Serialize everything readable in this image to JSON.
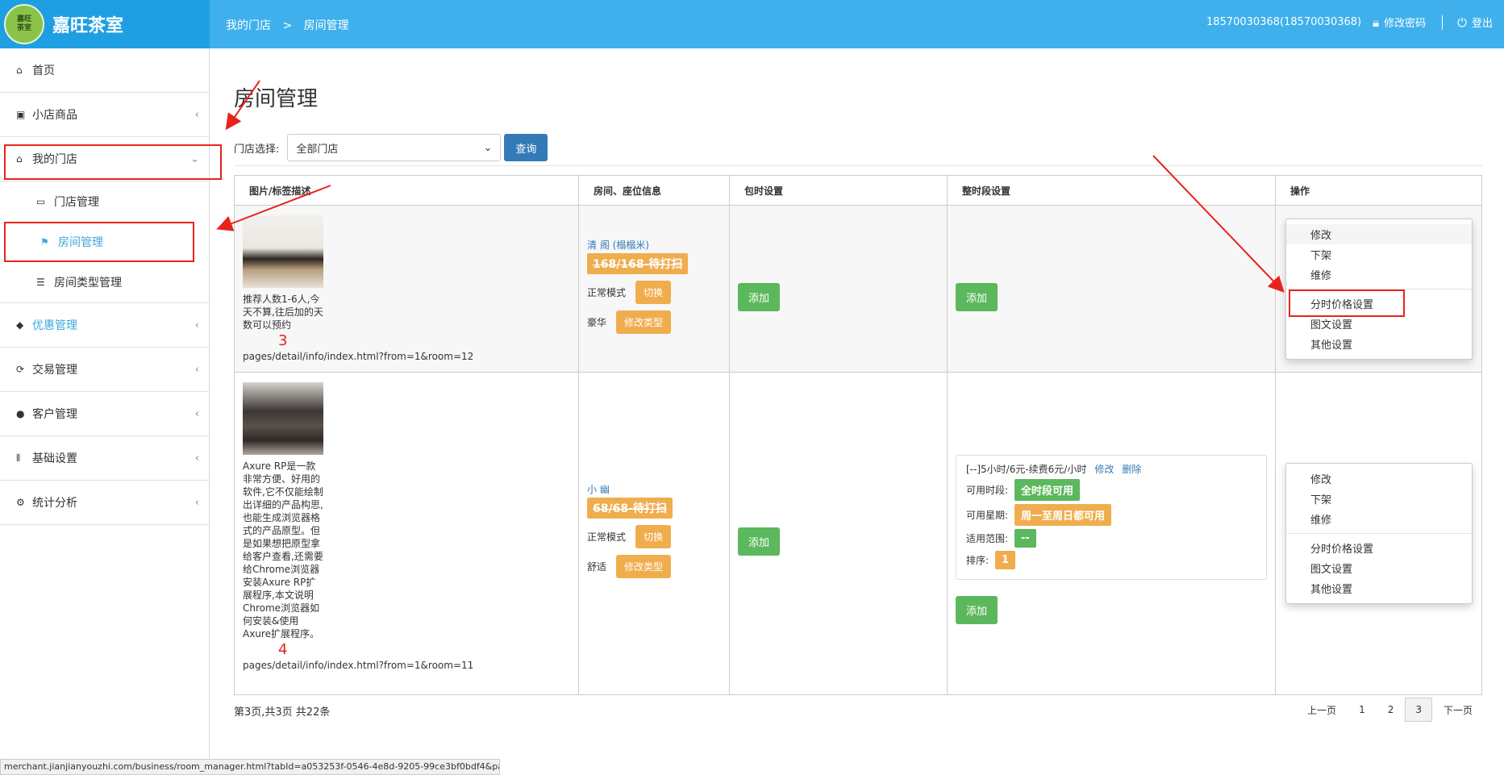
{
  "brand": {
    "logo_text": "嘉旺\n茶室",
    "name": "嘉旺茶室"
  },
  "breadcrumb": {
    "root": "我的门店",
    "sep": ">",
    "current": "房间管理"
  },
  "user": {
    "account": "18570030368(18570030368)",
    "change_password": "修改密码",
    "logout": "登出"
  },
  "sidebar": {
    "items": [
      {
        "label": "首页",
        "icon": "home-icon"
      },
      {
        "label": "小店商品",
        "icon": "gift-icon"
      },
      {
        "label": "我的门店",
        "icon": "home-icon"
      },
      {
        "label": "门店管理",
        "icon": "inbox-icon"
      },
      {
        "label": "房间管理",
        "icon": "flag-icon"
      },
      {
        "label": "房间类型管理",
        "icon": "list-icon"
      },
      {
        "label": "优惠管理",
        "icon": "tags-icon"
      },
      {
        "label": "交易管理",
        "icon": "refresh-icon"
      },
      {
        "label": "客户管理",
        "icon": "user-icon"
      },
      {
        "label": "基础设置",
        "icon": "barcode-icon"
      },
      {
        "label": "统计分析",
        "icon": "cog-icon"
      }
    ]
  },
  "page": {
    "title": "房间管理",
    "filter_label": "门店选择:",
    "filter_value": "全部门店",
    "query_button": "查询"
  },
  "table": {
    "headers": [
      "图片/标签描述",
      "房间、座位信息",
      "包时设置",
      "整时段设置",
      "操作"
    ],
    "rows": [
      {
        "description": "推荐人数1-6人,今天不算,往后加的天数可以预约",
        "number": "3",
        "url": "pages/detail/info/index.html?from=1&room=12",
        "room_name": "清 阁 (榻榻米)",
        "status": "168/168-待打扫",
        "mode": "正常模式",
        "switch": "切换",
        "type": "豪华",
        "change_type": "修改类型",
        "package_add": "添加",
        "slot_add": "添加"
      },
      {
        "description": "Axure RP是一款非常方便、好用的软件,它不仅能绘制出详细的产品构思,也能生成浏览器格式的产品原型。但是如果想把原型拿给客户查看,还需要给Chrome浏览器安装Axure RP扩展程序,本文说明Chrome浏览器如何安装&使用Axure扩展程序。",
        "number": "4",
        "url": "pages/detail/info/index.html?from=1&room=11",
        "room_name": "小 幽",
        "status": "68/68-待打扫",
        "mode": "正常模式",
        "switch": "切换",
        "type": "舒适",
        "change_type": "修改类型",
        "package_add": "添加",
        "slot": {
          "title": "[--]5小时/6元-续费6元/小时",
          "edit": "修改",
          "delete": "删除",
          "period_label": "可用时段:",
          "period_value": "全时段可用",
          "week_label": "可用星期:",
          "week_value": "周一至周日都可用",
          "scope_label": "适用范围:",
          "scope_value": "--",
          "order_label": "排序:",
          "order_value": "1"
        },
        "slot_add": "添加"
      }
    ]
  },
  "ops_menu": {
    "group1": [
      "修改",
      "下架",
      "维修"
    ],
    "group2": [
      "分时价格设置",
      "图文设置",
      "其他设置"
    ]
  },
  "footer": {
    "info": "第3页,共3页 共22条",
    "pager": [
      "上一页",
      "1",
      "2",
      "3",
      "下一页"
    ],
    "current_page": "3"
  },
  "status_bar": "merchant.jianjianyouzhi.com/business/room_manager.html?tabId=a053253f-0546-4e8d-9205-99ce3bf0bdf4&par..."
}
